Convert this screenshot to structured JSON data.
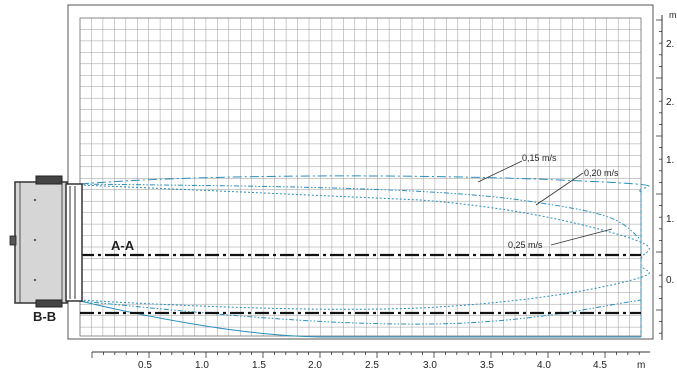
{
  "diagram": {
    "title": "",
    "x_axis": {
      "unit": "m",
      "tick_labels": [
        "0.5",
        "1.0",
        "1.5",
        "2.0",
        "2.5",
        "3.0",
        "3.5",
        "4.0",
        "4.5"
      ]
    },
    "y_axis": {
      "unit": "m",
      "tick_labels": [
        "2.",
        "2.",
        "1.",
        "1.",
        "0."
      ]
    },
    "section_labels": {
      "horizontal": "A-A",
      "side_view": "B-B"
    },
    "velocity_labels": [
      "0,15 m/s",
      "0,20 m/s",
      "0,25 m/s"
    ],
    "colors": {
      "grid": "#9a9a9a",
      "curve": "#2a8fbd",
      "section_line": "#111111",
      "unit_body": "#d6d6d6"
    }
  }
}
